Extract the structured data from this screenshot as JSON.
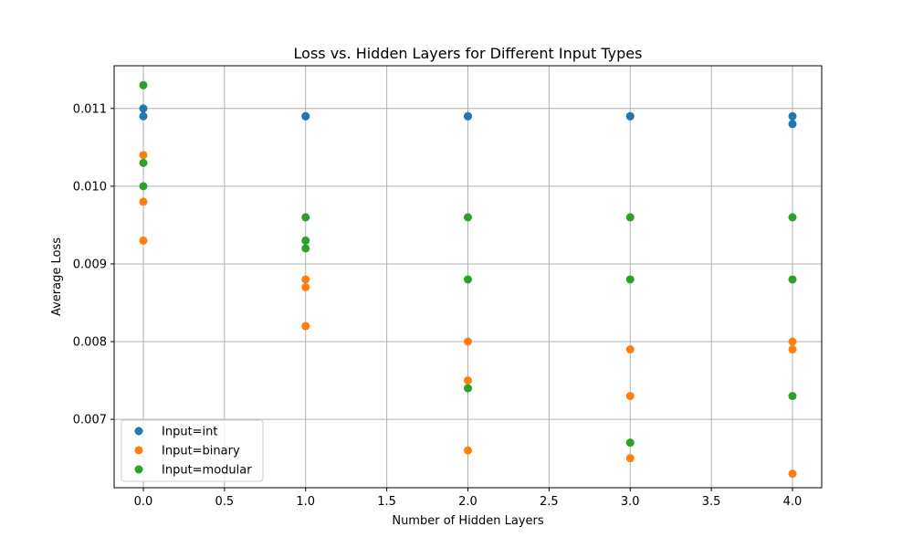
{
  "chart_data": {
    "type": "scatter",
    "title": "Loss vs. Hidden Layers for Different Input Types",
    "xlabel": "Number of Hidden Layers",
    "ylabel": "Average Loss",
    "xlim": [
      -0.18,
      4.18
    ],
    "ylim": [
      0.00612,
      0.01155
    ],
    "x_ticks": [
      0.0,
      0.5,
      1.0,
      1.5,
      2.0,
      2.5,
      3.0,
      3.5,
      4.0
    ],
    "x_tick_labels": [
      "0.0",
      "0.5",
      "1.0",
      "1.5",
      "2.0",
      "2.5",
      "3.0",
      "3.5",
      "4.0"
    ],
    "y_ticks": [
      0.007,
      0.008,
      0.009,
      0.01,
      0.011
    ],
    "y_tick_labels": [
      "0.007",
      "0.008",
      "0.009",
      "0.010",
      "0.011"
    ],
    "grid": true,
    "legend_position": "lower-left",
    "series": [
      {
        "name": "Input=int",
        "color": "#1f77b4",
        "points": [
          [
            0,
            0.011
          ],
          [
            0,
            0.0109
          ],
          [
            1,
            0.0109
          ],
          [
            1,
            0.0109
          ],
          [
            2,
            0.0109
          ],
          [
            2,
            0.0109
          ],
          [
            3,
            0.0109
          ],
          [
            3,
            0.0109
          ],
          [
            4,
            0.0109
          ],
          [
            4,
            0.0108
          ]
        ]
      },
      {
        "name": "Input=binary",
        "color": "#ff7f0e",
        "points": [
          [
            0,
            0.0104
          ],
          [
            0,
            0.0098
          ],
          [
            0,
            0.0093
          ],
          [
            1,
            0.0088
          ],
          [
            1,
            0.0087
          ],
          [
            1,
            0.0082
          ],
          [
            2,
            0.008
          ],
          [
            2,
            0.0075
          ],
          [
            2,
            0.0066
          ],
          [
            3,
            0.0079
          ],
          [
            3,
            0.0073
          ],
          [
            3,
            0.0065
          ],
          [
            4,
            0.008
          ],
          [
            4,
            0.0079
          ],
          [
            4,
            0.0063
          ]
        ]
      },
      {
        "name": "Input=modular",
        "color": "#2ca02c",
        "points": [
          [
            0,
            0.0113
          ],
          [
            0,
            0.0103
          ],
          [
            0,
            0.01
          ],
          [
            1,
            0.0096
          ],
          [
            1,
            0.0093
          ],
          [
            1,
            0.0092
          ],
          [
            2,
            0.0096
          ],
          [
            2,
            0.0088
          ],
          [
            2,
            0.0074
          ],
          [
            3,
            0.0096
          ],
          [
            3,
            0.0088
          ],
          [
            3,
            0.0067
          ],
          [
            4,
            0.0096
          ],
          [
            4,
            0.0088
          ],
          [
            4,
            0.0073
          ]
        ]
      }
    ]
  }
}
